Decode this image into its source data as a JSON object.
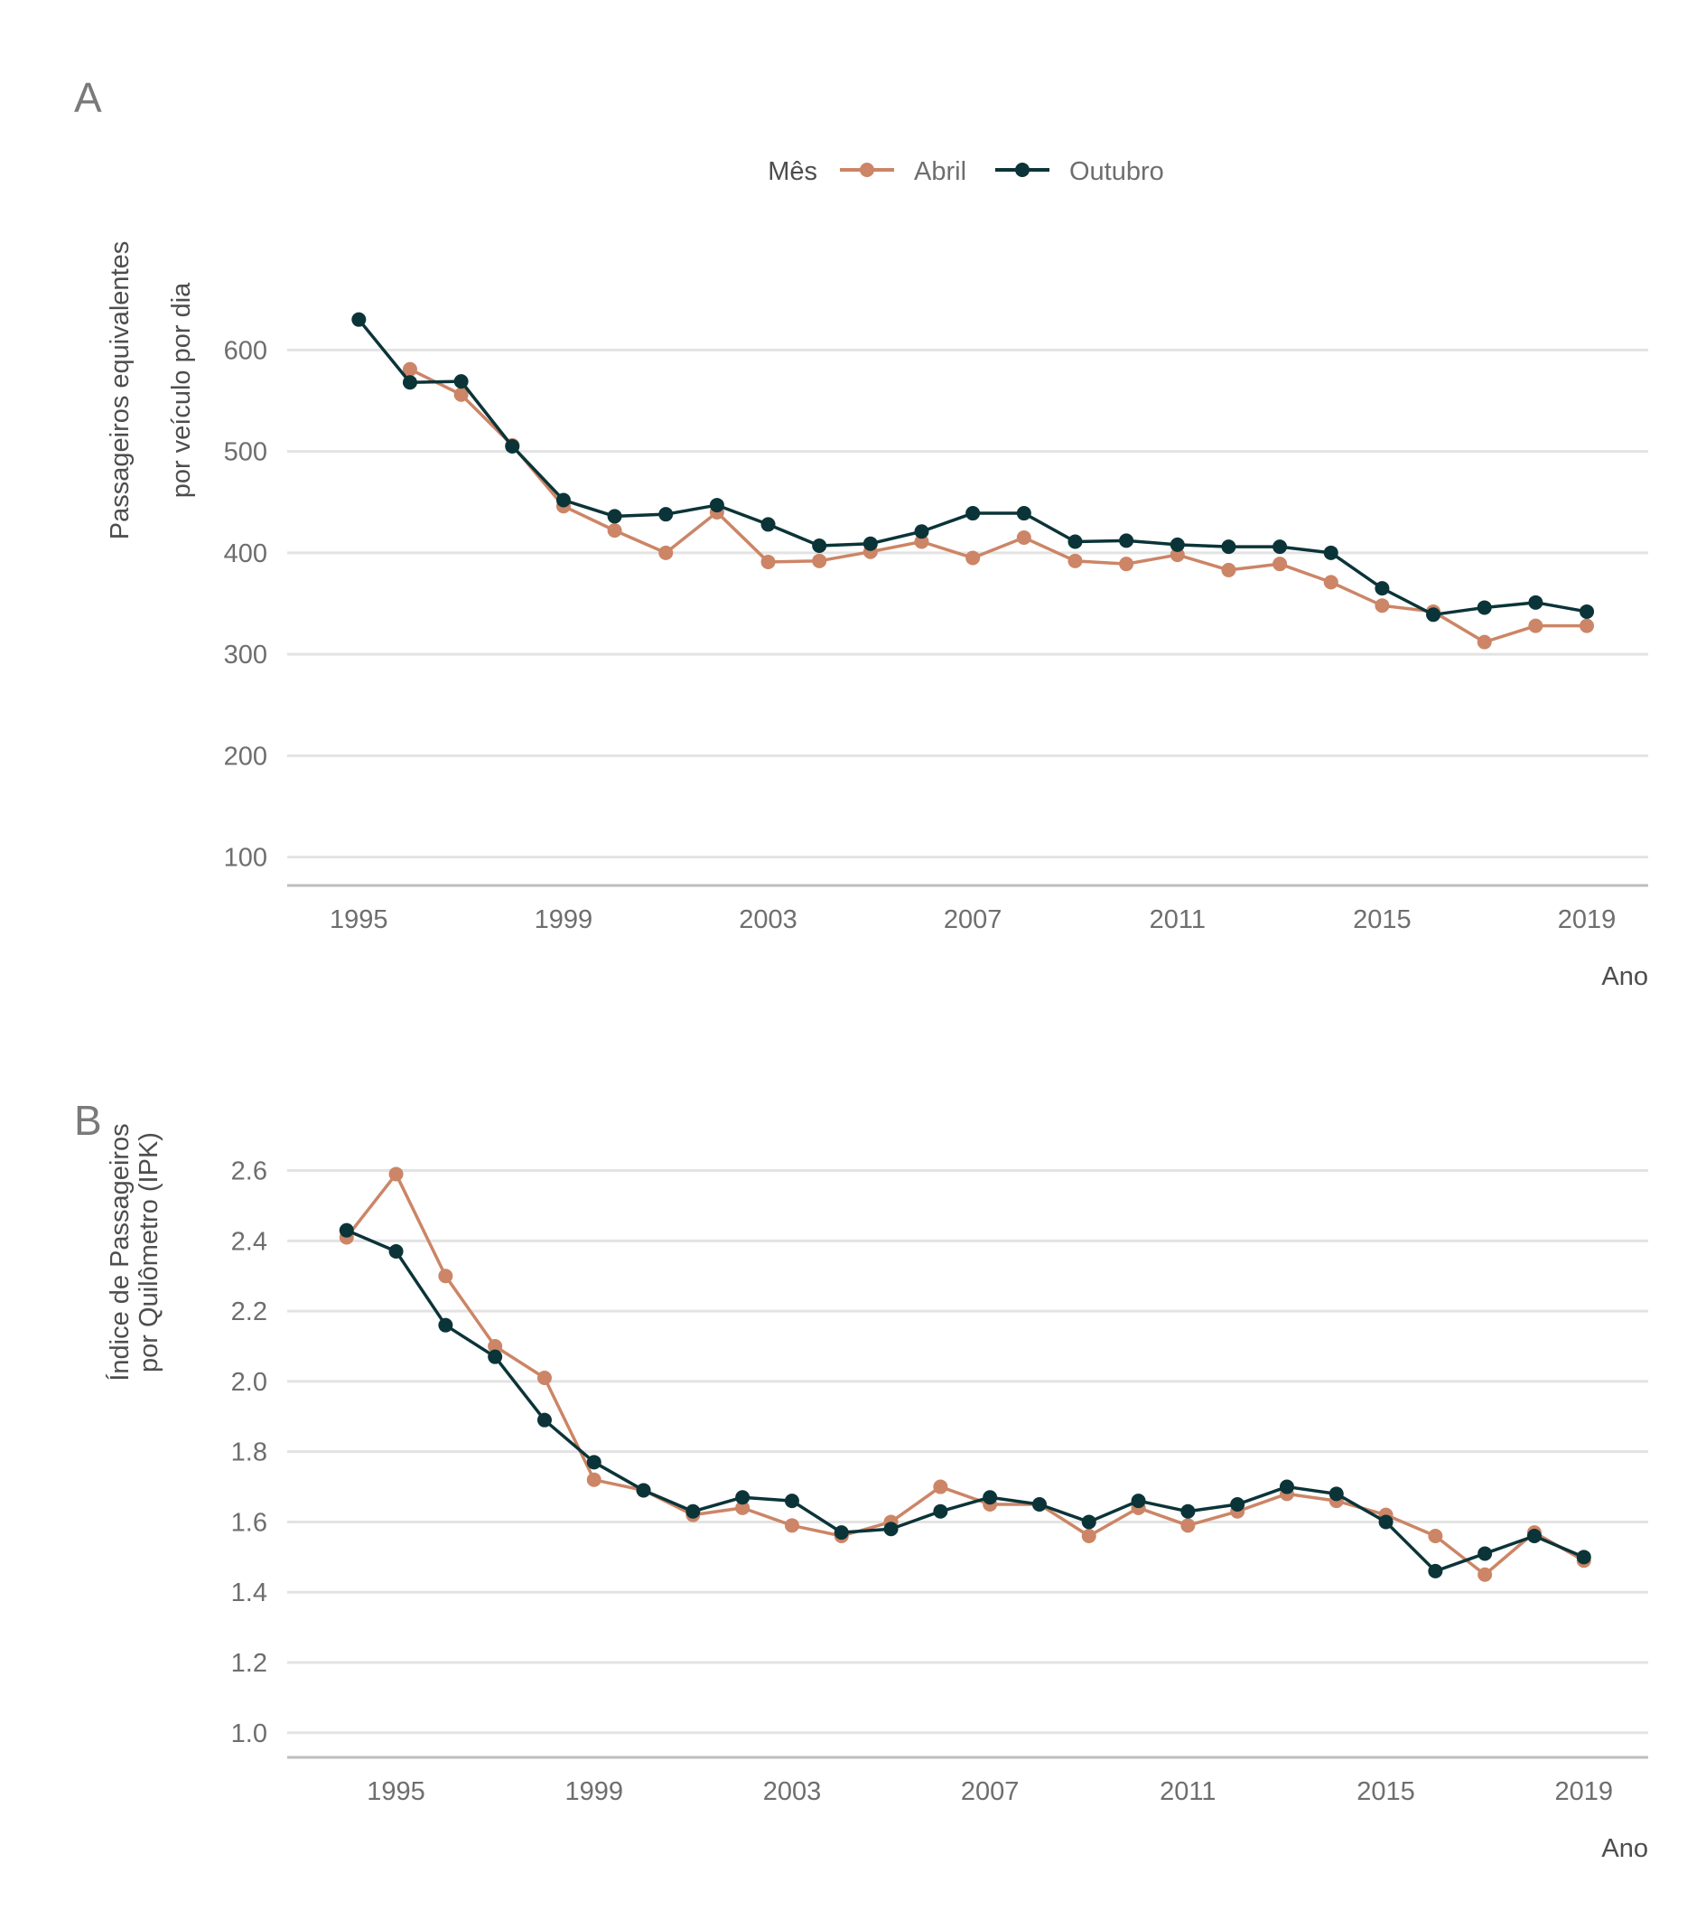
{
  "legend": {
    "title": "Mês",
    "items": [
      {
        "label": "Abril",
        "color": "#cc8566"
      },
      {
        "label": "Outubro",
        "color": "#0b3438"
      }
    ]
  },
  "chart_data": [
    {
      "panel": "A",
      "type": "line",
      "xlabel": "Ano",
      "ylabel_lines": [
        "Passageiros equivalentes",
        "por veículo por dia"
      ],
      "ylim": [
        72,
        660
      ],
      "yticks": [
        100,
        200,
        300,
        400,
        500,
        600
      ],
      "xticks": [
        1995,
        1999,
        2003,
        2007,
        2011,
        2015,
        2019
      ],
      "xlim": [
        1993.6,
        2020.2
      ],
      "grid": "horizontal",
      "x": [
        1995,
        1996,
        1997,
        1998,
        1999,
        2000,
        2001,
        2002,
        2003,
        2004,
        2005,
        2006,
        2007,
        2008,
        2009,
        2010,
        2011,
        2012,
        2013,
        2014,
        2015,
        2016,
        2017,
        2018,
        2019
      ],
      "series": [
        {
          "name": "Abril",
          "color": "#cc8566",
          "values": [
            null,
            581,
            556,
            506,
            446,
            422,
            400,
            440,
            391,
            392,
            401,
            411,
            395,
            415,
            392,
            389,
            398,
            383,
            389,
            371,
            348,
            342,
            312,
            328,
            328
          ]
        },
        {
          "name": "Outubro",
          "color": "#0b3438",
          "values": [
            630,
            568,
            569,
            505,
            452,
            436,
            438,
            447,
            428,
            407,
            409,
            421,
            439,
            439,
            411,
            412,
            408,
            406,
            406,
            400,
            365,
            339,
            346,
            351,
            342
          ]
        }
      ]
    },
    {
      "panel": "B",
      "type": "line",
      "xlabel": "Ano",
      "ylabel_lines": [
        "Índice de Passageiros",
        "por Quilômetro (IPK)"
      ],
      "ylim": [
        0.93,
        2.64
      ],
      "yticks": [
        "1.0",
        "1.2",
        "1.4",
        "1.6",
        "1.8",
        "2.0",
        "2.2",
        "2.4",
        "2.6"
      ],
      "xticks": [
        1995,
        1999,
        2003,
        2007,
        2011,
        2015,
        2019
      ],
      "xlim": [
        1992.8,
        2020.3
      ],
      "grid": "horizontal",
      "x": [
        1994,
        1995,
        1996,
        1997,
        1998,
        1999,
        2000,
        2001,
        2002,
        2003,
        2004,
        2005,
        2006,
        2007,
        2008,
        2009,
        2010,
        2011,
        2012,
        2013,
        2014,
        2015,
        2016,
        2017,
        2018,
        2019
      ],
      "series": [
        {
          "name": "Abril",
          "color": "#cc8566",
          "values": [
            2.41,
            2.59,
            2.3,
            2.1,
            2.01,
            1.72,
            1.69,
            1.62,
            1.64,
            1.59,
            1.56,
            1.6,
            1.7,
            1.65,
            1.65,
            1.56,
            1.64,
            1.59,
            1.63,
            1.68,
            1.66,
            1.62,
            1.56,
            1.45,
            1.57,
            1.49
          ]
        },
        {
          "name": "Outubro",
          "color": "#0b3438",
          "values": [
            2.43,
            2.37,
            2.16,
            2.07,
            1.89,
            1.77,
            1.69,
            1.63,
            1.67,
            1.66,
            1.57,
            1.58,
            1.63,
            1.67,
            1.65,
            1.6,
            1.66,
            1.63,
            1.65,
            1.7,
            1.68,
            1.6,
            1.46,
            1.51,
            1.56,
            1.5
          ]
        }
      ]
    }
  ]
}
